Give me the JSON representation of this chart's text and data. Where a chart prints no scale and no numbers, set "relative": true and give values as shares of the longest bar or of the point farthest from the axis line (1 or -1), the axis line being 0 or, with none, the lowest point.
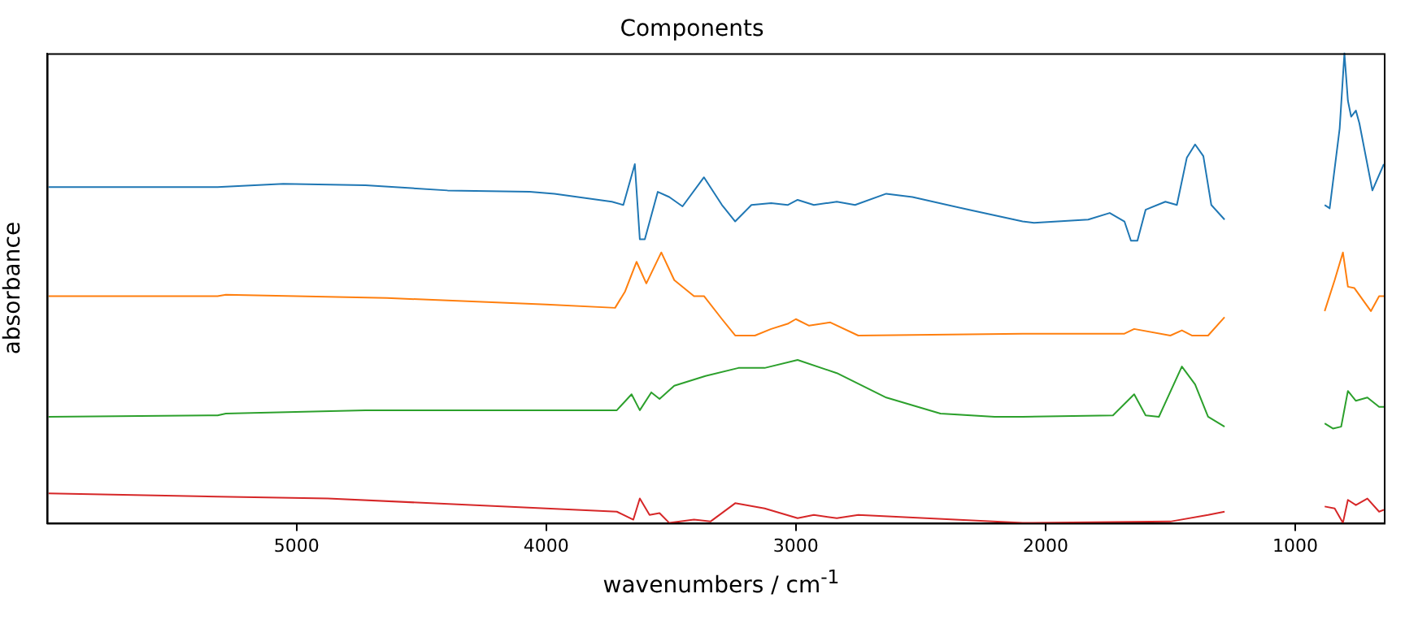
{
  "chart_data": {
    "type": "line",
    "title": "Components",
    "xlabel": "wavenumbers / cm$^{-1}$",
    "ylabel": "absorbance",
    "relative": true,
    "xlim": [
      6000,
      645
    ],
    "xticks": [
      5000,
      4000,
      3000,
      2000,
      1000
    ],
    "legend": false,
    "marker": "none",
    "line_style": "solid",
    "series": [
      {
        "color": "#1f77b4",
        "x": [
          5993,
          5316,
          5053,
          4724,
          4395,
          4066,
          3967,
          3737,
          3691,
          3645,
          3625,
          3605,
          3553,
          3507,
          3454,
          3368,
          3296,
          3243,
          3178,
          3099,
          3033,
          2993,
          2928,
          2836,
          2763,
          2638,
          2533,
          2309,
          2092,
          2046,
          1829,
          1743,
          1684,
          1658,
          1632,
          1599,
          1520,
          1474,
          1434,
          1401,
          1368,
          1336,
          1283,
          1100,
          882,
          862,
          822,
          803,
          789,
          776,
          757,
          743,
          691,
          645
        ],
        "values": [
          0.715,
          0.715,
          0.722,
          0.719,
          0.708,
          0.705,
          0.701,
          0.684,
          0.677,
          0.764,
          0.604,
          0.604,
          0.705,
          0.694,
          0.674,
          0.736,
          0.677,
          0.642,
          0.677,
          0.681,
          0.677,
          0.688,
          0.677,
          0.684,
          0.677,
          0.701,
          0.694,
          0.667,
          0.642,
          0.639,
          0.646,
          0.66,
          0.642,
          0.601,
          0.601,
          0.667,
          0.684,
          0.677,
          0.778,
          0.806,
          0.781,
          0.677,
          0.646,
          null,
          0.677,
          0.67,
          0.84,
          1.0,
          0.899,
          0.865,
          0.878,
          0.851,
          0.708,
          0.764
        ]
      },
      {
        "color": "#ff7f0e",
        "x": [
          5993,
          5316,
          5283,
          4638,
          4000,
          3724,
          3684,
          3638,
          3599,
          3539,
          3487,
          3408,
          3368,
          3296,
          3243,
          3164,
          3099,
          3033,
          3000,
          2947,
          2862,
          2750,
          2092,
          1684,
          1645,
          1500,
          1454,
          1414,
          1349,
          1283,
          1100,
          882,
          842,
          809,
          789,
          763,
          697,
          664,
          645
        ],
        "values": [
          0.483,
          0.483,
          0.486,
          0.479,
          0.465,
          0.458,
          0.493,
          0.556,
          0.51,
          0.576,
          0.517,
          0.483,
          0.483,
          0.434,
          0.399,
          0.399,
          0.413,
          0.424,
          0.434,
          0.42,
          0.427,
          0.399,
          0.403,
          0.403,
          0.413,
          0.399,
          0.41,
          0.399,
          0.399,
          0.438,
          null,
          0.451,
          0.517,
          0.576,
          0.503,
          0.5,
          0.451,
          0.483,
          0.483
        ]
      },
      {
        "color": "#2ca02c",
        "x": [
          5993,
          5316,
          5283,
          4724,
          4000,
          3717,
          3658,
          3625,
          3579,
          3546,
          3487,
          3362,
          3230,
          3125,
          2993,
          2836,
          2638,
          2421,
          2204,
          2092,
          1730,
          1645,
          1599,
          1546,
          1454,
          1401,
          1349,
          1283,
          1100,
          882,
          849,
          816,
          789,
          757,
          711,
          664,
          645
        ],
        "values": [
          0.226,
          0.229,
          0.233,
          0.24,
          0.24,
          0.24,
          0.274,
          0.24,
          0.278,
          0.264,
          0.292,
          0.313,
          0.33,
          0.33,
          0.347,
          0.319,
          0.267,
          0.233,
          0.226,
          0.226,
          0.229,
          0.274,
          0.229,
          0.226,
          0.333,
          0.295,
          0.226,
          0.205,
          null,
          0.212,
          0.201,
          0.205,
          0.281,
          0.26,
          0.267,
          0.247,
          0.247
        ]
      },
      {
        "color": "#d62728",
        "x": [
          5993,
          5316,
          4875,
          4000,
          3717,
          3651,
          3625,
          3586,
          3546,
          3507,
          3408,
          3342,
          3243,
          3125,
          2993,
          2928,
          2836,
          2750,
          2092,
          1500,
          1349,
          1283,
          1100,
          882,
          842,
          809,
          789,
          757,
          711,
          664,
          645
        ],
        "values": [
          0.063,
          0.056,
          0.052,
          0.031,
          0.024,
          0.007,
          0.052,
          0.017,
          0.021,
          0,
          0.007,
          0.003,
          0.042,
          0.031,
          0.01,
          0.017,
          0.01,
          0.017,
          0,
          0.003,
          0.017,
          0.024,
          null,
          0.035,
          0.031,
          0,
          0.049,
          0.038,
          0.052,
          0.024,
          0.028
        ]
      }
    ]
  }
}
